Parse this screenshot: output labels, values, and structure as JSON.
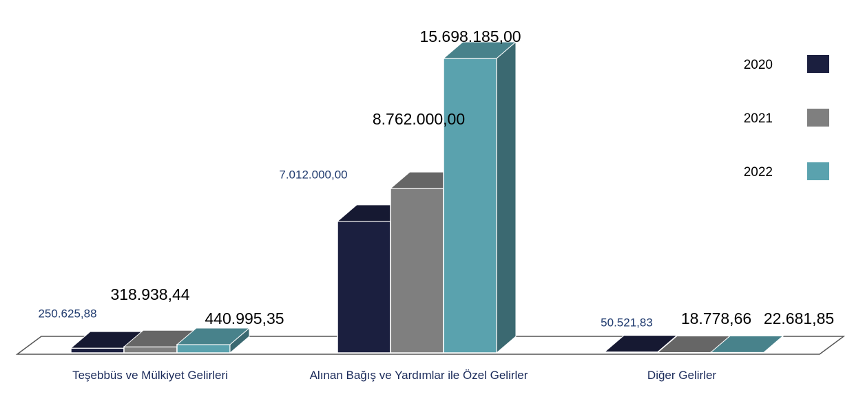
{
  "chart_data": {
    "type": "bar3d",
    "categories": [
      "Teşebbüs ve Mülkiyet Gelirleri",
      "Alınan Bağış ve Yardımlar ile Özel Gelirler",
      "Diğer Gelirler"
    ],
    "series": [
      {
        "name": "2020",
        "color": "#1b1f3f",
        "values": [
          250625.88,
          7012000,
          50521.83
        ],
        "value_labels": [
          "250.625,88",
          "7.012.000,00",
          "50.521,83"
        ]
      },
      {
        "name": "2021",
        "color": "#7f7f7f",
        "values": [
          318938.44,
          8762000,
          18778.66
        ],
        "value_labels": [
          "318.938,44",
          "8.762.000,00",
          "18.778,66"
        ]
      },
      {
        "name": "2022",
        "color": "#5aa2ae",
        "values": [
          440995.35,
          15698185,
          22681.85
        ],
        "value_labels": [
          "440.995,35",
          "15.698.185,00",
          "22.681,85"
        ]
      }
    ]
  }
}
